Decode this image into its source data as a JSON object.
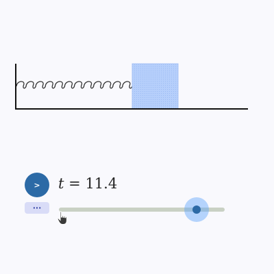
{
  "animation": {
    "play_label": ">",
    "more_label": "···",
    "time_variable": "t",
    "time_equals": "=",
    "time_value": "11.4",
    "slider_fraction": 0.83
  },
  "colors": {
    "block_fill": "#b6cffb",
    "spring": "#333333",
    "wall_floor": "#111111",
    "accent": "#2c6aa6",
    "slider_track": "#c9d1c4"
  },
  "icons": {
    "cursor": "hand-pointer-icon"
  }
}
